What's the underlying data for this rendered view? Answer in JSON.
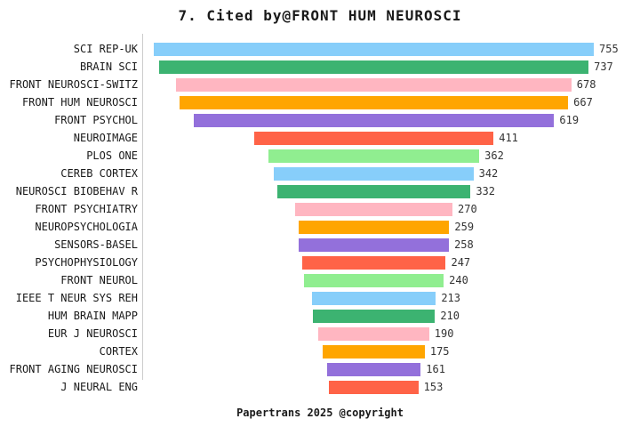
{
  "page": {
    "title": "7. Cited by@FRONT HUM NEUROSCI",
    "footer": "Papertrans 2025 @copyright"
  },
  "chart_data": {
    "type": "bar",
    "orientation": "horizontal",
    "style": "centered-funnel",
    "title": "7. Cited by@FRONT HUM NEUROSCI",
    "xlabel": "",
    "ylabel": "",
    "xlim": [
      0,
      755
    ],
    "grid": false,
    "legend": false,
    "value_labels": "right-of-bar",
    "categories": [
      "SCI REP-UK",
      "BRAIN SCI",
      "FRONT NEUROSCI-SWITZ",
      "FRONT HUM NEUROSCI",
      "FRONT PSYCHOL",
      "NEUROIMAGE",
      "PLOS ONE",
      "CEREB CORTEX",
      "NEUROSCI BIOBEHAV R",
      "FRONT PSYCHIATRY",
      "NEUROPSYCHOLOGIA",
      "SENSORS-BASEL",
      "PSYCHOPHYSIOLOGY",
      "FRONT NEUROL",
      "IEEE T NEUR SYS REH",
      "HUM BRAIN MAPP",
      "EUR J NEUROSCI",
      "CORTEX",
      "FRONT AGING NEUROSCI",
      "J NEURAL ENG"
    ],
    "values": [
      755,
      737,
      678,
      667,
      619,
      411,
      362,
      342,
      332,
      270,
      259,
      258,
      247,
      240,
      213,
      210,
      190,
      175,
      161,
      153
    ],
    "palette": [
      "#87CEFA",
      "#3CB371",
      "#FFB6C1",
      "#FFA500",
      "#9370DB",
      "#FF6347",
      "#90EE90"
    ],
    "colors": [
      "#87CEFA",
      "#3CB371",
      "#FFB6C1",
      "#FFA500",
      "#9370DB",
      "#FF6347",
      "#90EE90",
      "#87CEFA",
      "#3CB371",
      "#FFB6C1",
      "#FFA500",
      "#9370DB",
      "#FF6347",
      "#90EE90",
      "#87CEFA",
      "#3CB371",
      "#FFB6C1",
      "#FFA500",
      "#9370DB",
      "#FF6347"
    ],
    "axis_line_color": "#cccccc",
    "text_color": "#1a1a1a",
    "value_text_color": "#333333",
    "background_color": "#ffffff"
  }
}
